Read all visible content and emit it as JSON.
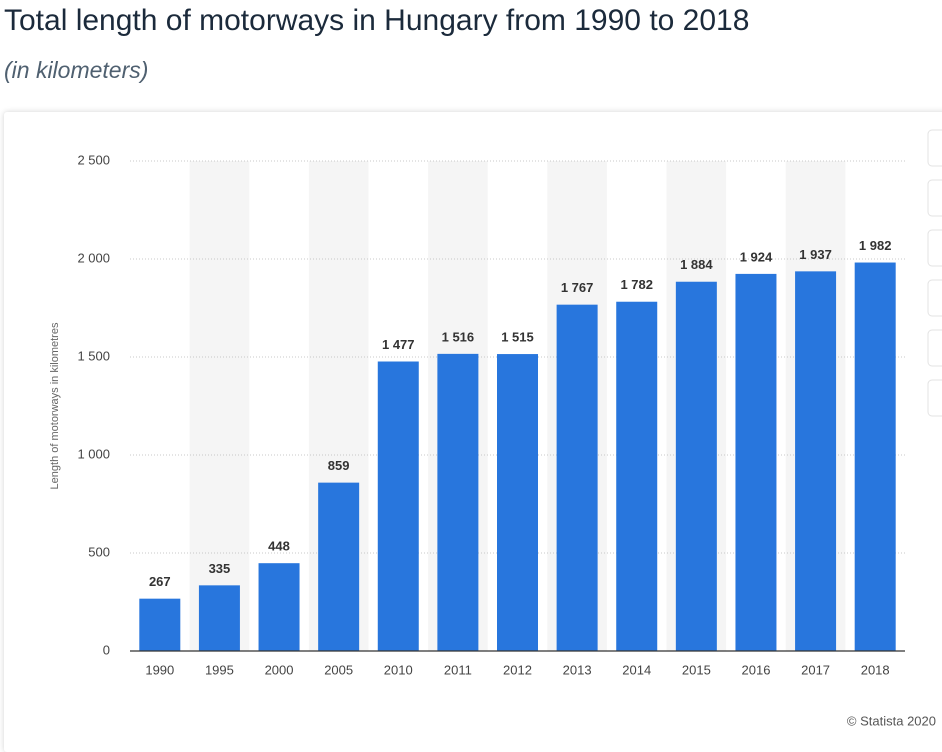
{
  "chart_data": {
    "type": "bar",
    "title": "Total length of motorways in Hungary from 1990 to 2018",
    "subtitle": "(in kilometers)",
    "y_label": "Length of motorways in kilometres",
    "source": "© Statista 2020",
    "categories": [
      "1990",
      "1995",
      "2000",
      "2005",
      "2010",
      "2011",
      "2012",
      "2013",
      "2014",
      "2015",
      "2016",
      "2017",
      "2018"
    ],
    "values": [
      267,
      335,
      448,
      859,
      1477,
      1516,
      1515,
      1767,
      1782,
      1884,
      1924,
      1937,
      1982
    ],
    "value_labels": [
      "267",
      "335",
      "448",
      "859",
      "1 477",
      "1 516",
      "1 515",
      "1 767",
      "1 782",
      "1 884",
      "1 924",
      "1 937",
      "1 982"
    ],
    "color": "#2876dd",
    "ylim": [
      0,
      2500
    ],
    "yticks": [
      0,
      500,
      {
        "value": 1000,
        "label": "1 000"
      },
      {
        "value": 1500,
        "label": "1 500"
      },
      {
        "value": 2000,
        "label": "2 000"
      },
      {
        "value": 2500,
        "label": "2 500"
      }
    ],
    "grid": true
  }
}
